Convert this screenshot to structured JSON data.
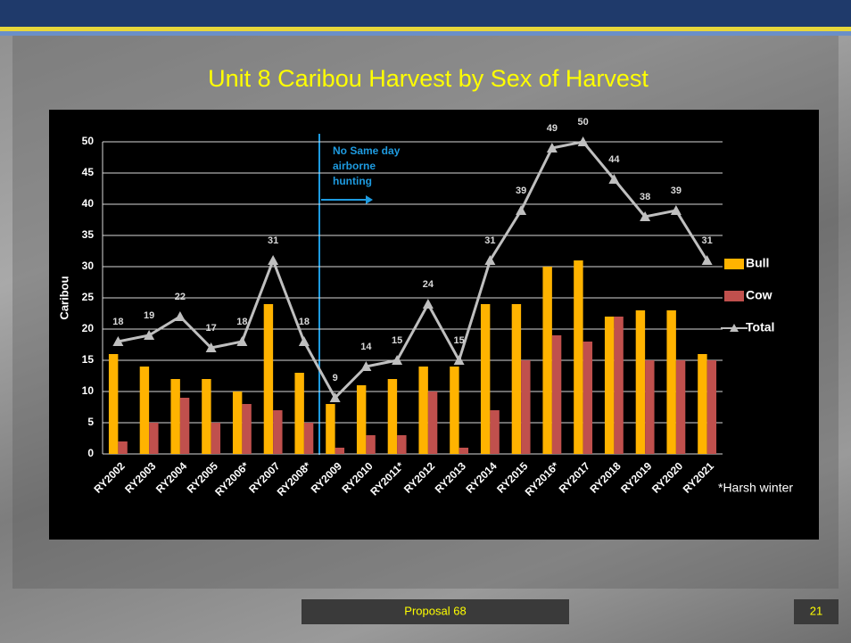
{
  "chart_data": {
    "type": "bar_line",
    "title": "Unit 8 Caribou Harvest by Sex of Harvest",
    "y_label": "Caribou",
    "categories": [
      "RY2002",
      "RY2003",
      "RY2004",
      "RY2005",
      "RY2006*",
      "RY2007",
      "RY2008*",
      "RY2009",
      "RY2010",
      "RY2011*",
      "RY2012",
      "RY2013",
      "RY2014",
      "RY2015",
      "RY2016*",
      "RY2017",
      "RY2018",
      "RY2019",
      "RY2020",
      "RY2021"
    ],
    "series": [
      {
        "name": "Bull",
        "color": "#ffb300",
        "type": "bar",
        "values": [
          16,
          14,
          12,
          12,
          10,
          24,
          13,
          8,
          11,
          12,
          14,
          14,
          24,
          24,
          30,
          31,
          22,
          23,
          23,
          16
        ]
      },
      {
        "name": "Cow",
        "color": "#c0504d",
        "type": "bar",
        "values": [
          2,
          5,
          9,
          5,
          8,
          7,
          5,
          1,
          3,
          3,
          10,
          1,
          7,
          15,
          19,
          18,
          22,
          15,
          15,
          15
        ]
      },
      {
        "name": "Total",
        "color": "#bfbfbf",
        "type": "line",
        "values": [
          18,
          19,
          22,
          17,
          18,
          31,
          18,
          9,
          14,
          15,
          24,
          15,
          31,
          39,
          49,
          50,
          44,
          38,
          39,
          31
        ]
      }
    ],
    "ylim": [
      0,
      50
    ],
    "yticks": [
      0,
      5,
      10,
      15,
      20,
      25,
      30,
      35,
      40,
      45,
      50
    ],
    "legend": "right",
    "annotations": [
      "No Same day",
      "airborne",
      "hunting",
      "*Harsh winter"
    ]
  },
  "footer": {
    "text": "Proposal 68",
    "page": "21"
  }
}
